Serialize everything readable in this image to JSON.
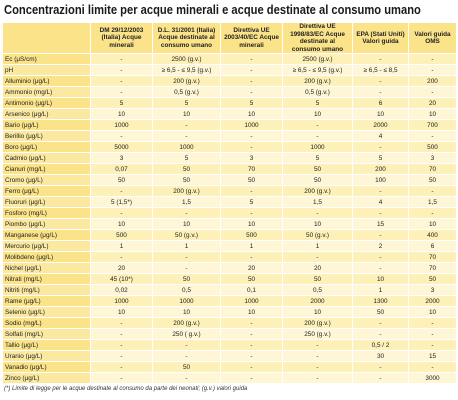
{
  "title": "Concentrazioni limite per acque minerali e acque destinate al consumo umano",
  "table": {
    "header": [
      "DM 29/12/2003 (Italia) Acque minerali",
      "D.L. 31/2001 (Italia) Acque destinate al consumo umano",
      "Direttiva UE 2003/40/EC Acque minerali",
      "Direttiva UE 1998/83/EC Acque destinate al consumo umano",
      "EPA (Stati Uniti) Valori guida",
      "Valori guida OMS"
    ],
    "rows": [
      [
        "Ec (μS/cm)",
        "-",
        "2500 (g.v.)",
        "-",
        "2500 (g.v.)",
        "-",
        "-"
      ],
      [
        "pH",
        "-",
        "≥ 6,5 - ≤ 9,5 (g.v.)",
        "-",
        "≥ 6,5 - ≤ 9,5 (g.v.)",
        "≥ 6,5 - ≤ 8,5",
        "-"
      ],
      [
        "Alluminio (μg/L)",
        "-",
        "200 (g.v.)",
        "-",
        "200 (g.v.)",
        "-",
        "200"
      ],
      [
        "Ammonio (mg/L)",
        "-",
        "0,5 (g.v.)",
        "-",
        "0,5 (g.v.)",
        "-",
        "-"
      ],
      [
        "Antimonio (μg/L)",
        "5",
        "5",
        "5",
        "5",
        "6",
        "20"
      ],
      [
        "Arsenico (μg/L)",
        "10",
        "10",
        "10",
        "10",
        "10",
        "10"
      ],
      [
        "Bario (μg/L)",
        "1000",
        "-",
        "1000",
        "-",
        "2000",
        "700"
      ],
      [
        "Berillio (μg/L)",
        "-",
        "-",
        "-",
        "-",
        "4",
        "-"
      ],
      [
        "Boro (μg/L)",
        "5000",
        "1000",
        "-",
        "1000",
        "-",
        "500"
      ],
      [
        "Cadmio (μg/L)",
        "3",
        "5",
        "3",
        "5",
        "5",
        "3"
      ],
      [
        "Cianuri (mg/L)",
        "0,07",
        "50",
        "70",
        "50",
        "200",
        "70"
      ],
      [
        "Cromo (μg/L)",
        "50",
        "50",
        "50",
        "50",
        "100",
        "50"
      ],
      [
        "Ferro (μg/L)",
        "-",
        "200 (g.v.)",
        "-",
        "200 (g.v.)",
        "-",
        "-"
      ],
      [
        "Fluoruri (μg/L)",
        "5 (1,5*)",
        "1,5",
        "5",
        "1,5",
        "4",
        "1,5"
      ],
      [
        "Fosforo (mg/L)",
        "-",
        "-",
        "-",
        "-",
        "-",
        "-"
      ],
      [
        "Piombo (μg/L)",
        "10",
        "10",
        "10",
        "10",
        "15",
        "10"
      ],
      [
        "Manganese (μg/L)",
        "500",
        "50 (g.v.)",
        "500",
        "50 (g.v.)",
        "-",
        "400"
      ],
      [
        "Mercurio (μg/L)",
        "1",
        "1",
        "1",
        "1",
        "2",
        "6"
      ],
      [
        "Molibdeno (μg/L)",
        "-",
        "-",
        "-",
        "-",
        "-",
        "70"
      ],
      [
        "Nichel (μg/L)",
        "20",
        "-",
        "20",
        "20",
        "-",
        "70"
      ],
      [
        "Nitrati (mg/L)",
        "45 (10*)",
        "50",
        "50",
        "50",
        "10",
        "50"
      ],
      [
        "Nitriti (mg/L)",
        "0,02",
        "0,5",
        "0,1",
        "0,5",
        "1",
        "3"
      ],
      [
        "Rame (μg/L)",
        "1000",
        "1000",
        "1000",
        "2000",
        "1300",
        "2000"
      ],
      [
        "Selenio (μg/L)",
        "10",
        "10",
        "10",
        "10",
        "50",
        "10"
      ],
      [
        "Sodio (mg/L)",
        "-",
        "200 (g.v.)",
        "-",
        "200 (g.v.)",
        "-",
        "-"
      ],
      [
        "Solfati (mg/L)",
        "-",
        "250 ( g.v.)",
        "-",
        "250 (g.v.)",
        "-",
        "-"
      ],
      [
        "Tallio (μg/L)",
        "-",
        "-",
        "-",
        "-",
        "0,5 / 2",
        "-"
      ],
      [
        "Uranio (μg/L)",
        "-",
        "-",
        "-",
        "-",
        "30",
        "15"
      ],
      [
        "Vanadio (μg/L)",
        "-",
        "50",
        "-",
        "-",
        "-",
        "-"
      ],
      [
        "Zinco (μg/L)",
        "-",
        "-",
        "-",
        "-",
        "-",
        "3000"
      ]
    ]
  },
  "footnote": "(*) Limite di legge per le acque destinate al consumo da parte dei neonati; (g.v.) valori guida"
}
